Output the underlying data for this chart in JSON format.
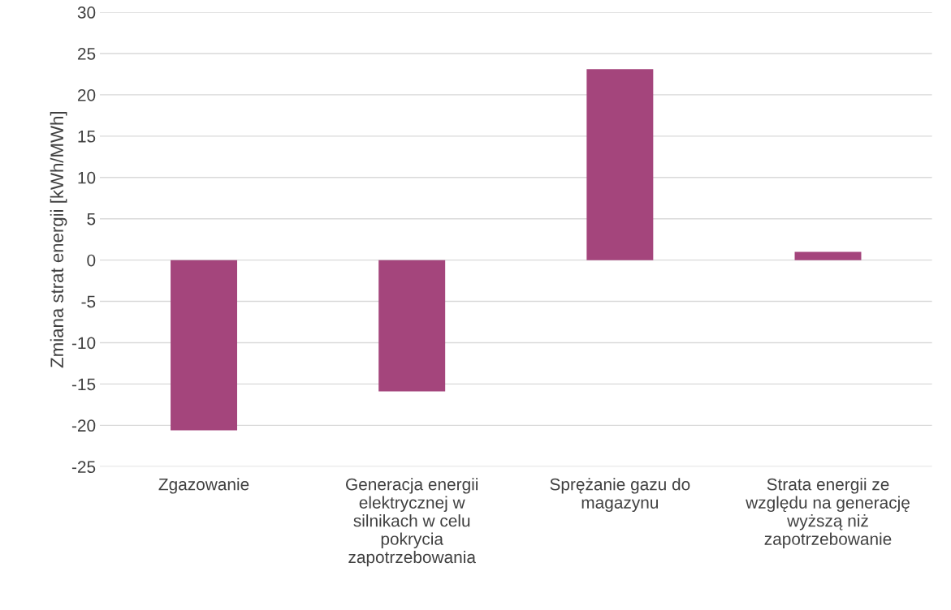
{
  "chart_data": {
    "type": "bar",
    "ylabel": "Zmiana strat energii [kWh/MWh]",
    "categories": [
      "Zgazowanie",
      "Generacja energii elektrycznej w silnikach w celu pokrycia zapotrzebowania",
      "Sprężanie gazu do magazynu",
      "Strata energii ze względu na generację wyższą niż zapotrzebowanie"
    ],
    "values": [
      -20.6,
      -15.9,
      23.1,
      1.0
    ],
    "color": "#a4457c",
    "ylim": [
      -25,
      30
    ],
    "yticks": [
      -25,
      -20,
      -15,
      -10,
      -5,
      0,
      5,
      10,
      15,
      20,
      25,
      30
    ],
    "grid": "y",
    "legend": false
  }
}
